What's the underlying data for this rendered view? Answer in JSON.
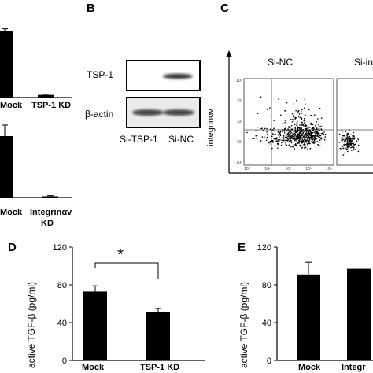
{
  "figure": {
    "panel_letters": {
      "B": "B",
      "C": "C",
      "D": "D",
      "E": "E"
    },
    "panel_a_top": {
      "x_labels": [
        "Mock",
        "TSP-1 KD"
      ]
    },
    "panel_a_bottom": {
      "x_labels": [
        "Mock",
        "Integrinαv",
        "KD"
      ]
    },
    "panel_b": {
      "rows": [
        "TSP-1",
        "β-actin"
      ],
      "lane_labels": [
        "Si-TSP-1",
        "Si-NC"
      ]
    },
    "panel_c": {
      "plot_titles": [
        "Si-NC",
        "Si-in"
      ],
      "y_axis_label": "integrinαv",
      "tick_labels": [
        "10⁰",
        "10¹",
        "10²",
        "10³",
        "10⁴"
      ]
    },
    "panel_d": {
      "significance": "*"
    },
    "panel_e": {}
  },
  "chart_data": [
    {
      "type": "bar",
      "panel": "A-top",
      "categories": [
        "Mock",
        "TSP-1 KD"
      ],
      "values": [
        1.0,
        0.04
      ],
      "error": [
        0.04,
        0.01
      ],
      "title": "",
      "xlabel": "",
      "ylabel": ""
    },
    {
      "type": "bar",
      "panel": "A-bottom",
      "categories": [
        "Mock",
        "Integrinαv KD"
      ],
      "values": [
        1.0,
        0.02
      ],
      "error": [
        0.18,
        0.01
      ],
      "title": "",
      "xlabel": "",
      "ylabel": ""
    },
    {
      "type": "bar",
      "panel": "D",
      "categories": [
        "Mock",
        "TSP-1 KD"
      ],
      "values": [
        73,
        51
      ],
      "error": [
        6,
        4
      ],
      "ylabel": "active TGF-β (pg/ml)",
      "ylim": [
        0,
        120
      ],
      "yticks": [
        0,
        40,
        80,
        120
      ],
      "title": "",
      "xlabel": ""
    },
    {
      "type": "bar",
      "panel": "E",
      "categories": [
        "Mock",
        "Integr"
      ],
      "values": [
        91,
        97
      ],
      "error": [
        13,
        0
      ],
      "ylabel": "active TGF-β (pg/ml)",
      "ylim": [
        0,
        120
      ],
      "yticks": [
        0,
        40,
        80,
        120
      ],
      "title": "",
      "xlabel": ""
    }
  ]
}
